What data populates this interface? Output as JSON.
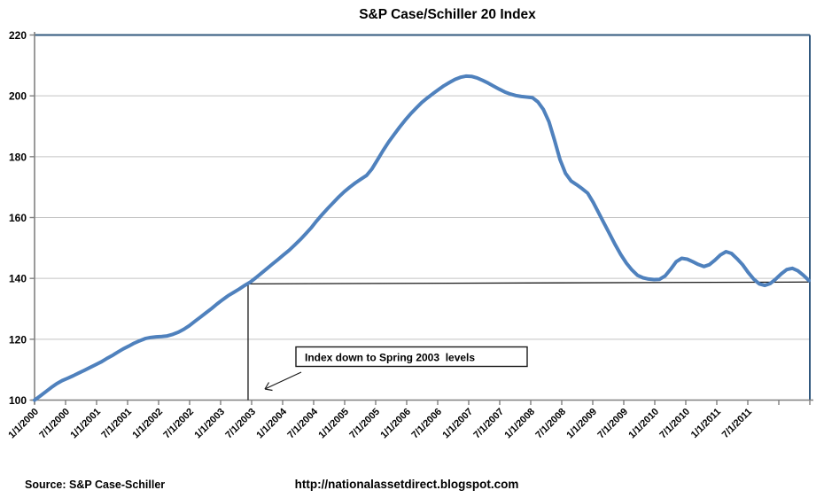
{
  "title": "S&P Case/Schiller 20 Index",
  "footer": {
    "source": "Source:  S&P Case-Schiller",
    "url": "http://nationalassetdirect.blogspot.com"
  },
  "colors": {
    "series_blue": "#4F81BD",
    "plot_border_blue": "#31587E",
    "axis_gray": "#808080",
    "gridline_gray": "#C3C3C3",
    "annotation_black": "#1a1a1a"
  },
  "chart_data": {
    "type": "line",
    "title": "S&P Case/Schiller 20 Index",
    "xlabel": "",
    "ylabel": "",
    "x_start": "2000-01",
    "frequency": "monthly",
    "ylim": [
      100,
      220
    ],
    "y_ticks": [
      220,
      200,
      180,
      160,
      140,
      120,
      100
    ],
    "grid": "horizontal",
    "legend": "none",
    "x_tick_labels": [
      "1/1/2000",
      "7/1/2000",
      "1/1/2001",
      "7/1/2001",
      "1/1/2002",
      "7/1/2002",
      "1/1/2003",
      "7/1/2003",
      "1/1/2004",
      "7/1/2004",
      "1/1/2005",
      "7/1/2005",
      "1/1/2006",
      "7/1/2006",
      "1/1/2007",
      "7/1/2007",
      "1/1/2008",
      "7/1/2008",
      "1/1/2009",
      "7/1/2009",
      "1/1/2010",
      "7/1/2010",
      "1/1/2011",
      "7/1/2011"
    ],
    "values": [
      100.0,
      101.3,
      102.7,
      104.1,
      105.4,
      106.4,
      107.2,
      108.0,
      108.9,
      109.8,
      110.7,
      111.6,
      112.5,
      113.6,
      114.6,
      115.7,
      116.8,
      117.7,
      118.7,
      119.5,
      120.2,
      120.6,
      120.8,
      120.9,
      121.1,
      121.6,
      122.3,
      123.3,
      124.5,
      125.9,
      127.3,
      128.7,
      130.1,
      131.6,
      133.0,
      134.3,
      135.4,
      136.5,
      137.7,
      138.8,
      140.2,
      141.7,
      143.2,
      144.7,
      146.2,
      147.7,
      149.2,
      150.9,
      152.7,
      154.6,
      156.6,
      158.9,
      161.0,
      163.0,
      164.9,
      166.8,
      168.5,
      170.0,
      171.4,
      172.6,
      173.8,
      176.0,
      179.0,
      182.0,
      184.8,
      187.3,
      189.7,
      192.0,
      194.1,
      196.0,
      197.8,
      199.3,
      200.7,
      202.0,
      203.3,
      204.4,
      205.4,
      206.1,
      206.5,
      206.4,
      205.9,
      205.1,
      204.2,
      203.2,
      202.2,
      201.3,
      200.6,
      200.1,
      199.8,
      199.6,
      199.4,
      198.0,
      195.5,
      191.5,
      185.5,
      179.0,
      174.5,
      172.0,
      170.8,
      169.5,
      168.0,
      165.0,
      161.5,
      158.0,
      154.5,
      151.0,
      147.8,
      145.0,
      142.8,
      141.0,
      140.2,
      139.8,
      139.6,
      139.7,
      140.8,
      143.0,
      145.5,
      146.6,
      146.3,
      145.5,
      144.6,
      143.9,
      144.5,
      146.0,
      147.7,
      148.8,
      148.2,
      146.5,
      144.5,
      142.0,
      139.8,
      138.2,
      137.7,
      138.3,
      139.8,
      141.5,
      142.9,
      143.3,
      142.5,
      141.0,
      139.3
    ],
    "annotations": {
      "callout_text": "Index down to Spring 2003  levels",
      "reference_line": {
        "start_month_index": 38.6,
        "start_value": 138.2,
        "end_month_index": 140,
        "end_value": 138.8
      },
      "vertical_drop_line": {
        "month_index": 38.6,
        "from_value": 138.2,
        "to_value": 100
      }
    }
  }
}
